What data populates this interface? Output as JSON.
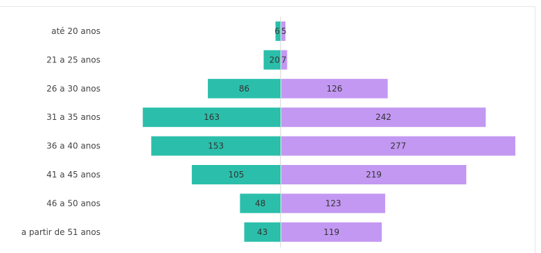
{
  "chart_data": {
    "type": "bar",
    "orientation": "horizontal-diverging",
    "categories": [
      "até 20 anos",
      "21 a 25 anos",
      "26 a 30 anos",
      "31 a 35 anos",
      "36 a 40 anos",
      "41 a 45 anos",
      "46 a 50 anos",
      "a partir de 51 anos"
    ],
    "series": [
      {
        "values": [
          6,
          20,
          86,
          163,
          153,
          105,
          48,
          43
        ],
        "color": "#2bbfab",
        "side": "left"
      },
      {
        "values": [
          5,
          7,
          126,
          242,
          277,
          219,
          123,
          119
        ],
        "color": "#c398f2",
        "side": "right"
      }
    ],
    "title": "",
    "xlabel": "",
    "ylabel": "",
    "grid": false,
    "legend": "none"
  }
}
